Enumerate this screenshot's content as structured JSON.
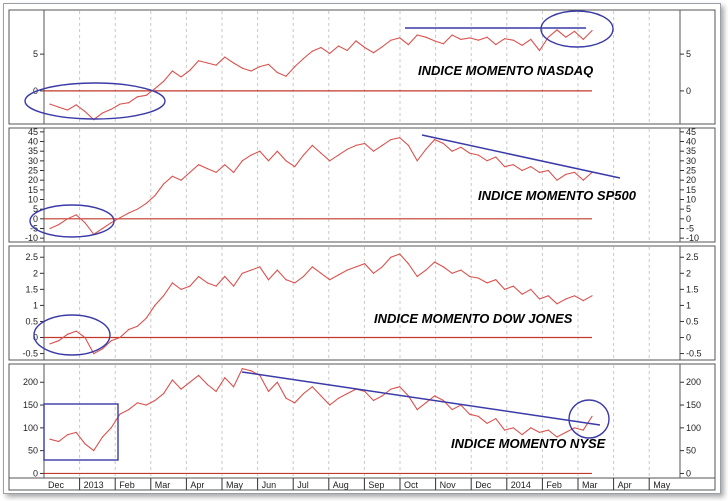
{
  "colors": {
    "series": "#d9534f",
    "zero_line": "#c0392b",
    "annotation": "#3a3aa8",
    "grid": "#c8c8c8",
    "panel_border": "#555555"
  },
  "x_axis": {
    "months": [
      "Dec",
      "2013",
      "Feb",
      "Mar",
      "Apr",
      "May",
      "Jun",
      "Jul",
      "Aug",
      "Sep",
      "Oct",
      "Nov",
      "Dec",
      "2014",
      "Feb",
      "Mar",
      "Apr",
      "May"
    ]
  },
  "chart_data": [
    {
      "type": "line",
      "title": "INDICE MOMENTO NASDAQ",
      "ticks": [
        0,
        5
      ],
      "ylim": [
        -4.5,
        11
      ],
      "grid": true,
      "series": [
        {
          "values": [
            -1.8,
            -2.2,
            -2.6,
            -1.9,
            -2.8,
            -3.9,
            -3.0,
            -2.5,
            -1.8,
            -1.6,
            -0.8,
            -0.6,
            0.3,
            1.3,
            2.7,
            1.9,
            2.8,
            4.1,
            3.8,
            3.5,
            4.6,
            3.8,
            3.1,
            2.7,
            3.3,
            3.6,
            2.5,
            2.0,
            3.3,
            4.4,
            5.4,
            5.9,
            5.1,
            6.1,
            5.5,
            6.8,
            5.9,
            5.2,
            6.0,
            6.9,
            7.2,
            6.3,
            7.6,
            7.3,
            6.8,
            6.4,
            7.6,
            7.0,
            7.2,
            6.9,
            7.3,
            6.3,
            7.1,
            6.9,
            6.2,
            7.0,
            5.5,
            7.3,
            8.3,
            7.3,
            8.1,
            7.0,
            8.2
          ]
        }
      ],
      "annotations": {
        "ellipse_count": 2,
        "trendline_count": 1
      }
    },
    {
      "type": "line",
      "title": "INDICE MOMENTO SP500",
      "ticks": [
        -10,
        -5,
        0,
        5,
        10,
        15,
        20,
        25,
        30,
        35,
        40,
        45
      ],
      "ylim": [
        -12,
        47
      ],
      "grid": true,
      "series": [
        {
          "values": [
            -5.0,
            -3.0,
            0.0,
            2.0,
            -2.0,
            -8.0,
            -5.0,
            -2.0,
            0.5,
            3.0,
            5.0,
            8.0,
            12.0,
            18.0,
            22.0,
            20.0,
            24.0,
            28.0,
            26.0,
            24.0,
            28.0,
            24.0,
            30.0,
            33.0,
            35.0,
            30.0,
            35.0,
            30.0,
            27.0,
            33.0,
            38.0,
            34.0,
            30.0,
            33.0,
            36.0,
            38.0,
            39.0,
            35.0,
            38.0,
            41.0,
            42.0,
            38.0,
            30.0,
            36.0,
            41.0,
            39.0,
            35.0,
            37.0,
            34.0,
            33.0,
            30.0,
            32.0,
            27.0,
            28.0,
            25.0,
            27.0,
            24.0,
            25.0,
            20.0,
            23.0,
            24.0,
            20.0,
            24.0
          ]
        }
      ],
      "annotations": {
        "ellipse_count": 1,
        "trendline_count": 1
      }
    },
    {
      "type": "line",
      "title": "INDICE MOMENTO DOW JONES",
      "ticks": [
        -0.5,
        0.0,
        0.5,
        1.0,
        1.5,
        2.0,
        2.5
      ],
      "ylim": [
        -0.7,
        2.85
      ],
      "grid": true,
      "series": [
        {
          "values": [
            -0.2,
            -0.1,
            0.1,
            0.2,
            0.0,
            -0.5,
            -0.35,
            -0.1,
            0.0,
            0.25,
            0.35,
            0.6,
            1.0,
            1.3,
            1.7,
            1.5,
            1.6,
            1.9,
            1.7,
            1.6,
            1.9,
            1.6,
            2.0,
            2.1,
            2.2,
            1.8,
            2.1,
            1.8,
            1.7,
            1.9,
            2.2,
            2.0,
            1.8,
            1.95,
            2.1,
            2.2,
            2.3,
            2.0,
            2.2,
            2.5,
            2.6,
            2.3,
            1.9,
            2.1,
            2.35,
            2.2,
            2.0,
            2.1,
            1.9,
            1.85,
            1.7,
            1.8,
            1.5,
            1.6,
            1.35,
            1.5,
            1.2,
            1.3,
            1.05,
            1.2,
            1.3,
            1.15,
            1.3
          ]
        }
      ],
      "annotations": {
        "ellipse_count": 1,
        "trendline_count": 0
      }
    },
    {
      "type": "line",
      "title": "INDICE MOMENTO NYSE",
      "ticks": [
        0,
        50,
        100,
        150,
        200
      ],
      "ylim": [
        -10,
        240
      ],
      "grid": true,
      "series": [
        {
          "values": [
            75,
            70,
            85,
            90,
            65,
            50,
            80,
            100,
            130,
            140,
            155,
            150,
            160,
            175,
            205,
            185,
            200,
            215,
            195,
            180,
            210,
            190,
            230,
            225,
            215,
            180,
            200,
            165,
            155,
            175,
            190,
            170,
            150,
            165,
            175,
            185,
            180,
            160,
            170,
            185,
            190,
            170,
            140,
            155,
            170,
            160,
            140,
            150,
            130,
            125,
            110,
            120,
            95,
            100,
            85,
            100,
            90,
            95,
            80,
            90,
            100,
            95,
            125
          ]
        }
      ],
      "annotations": {
        "ellipse_count": 1,
        "trendline_count": 1,
        "box_count": 1
      }
    }
  ]
}
